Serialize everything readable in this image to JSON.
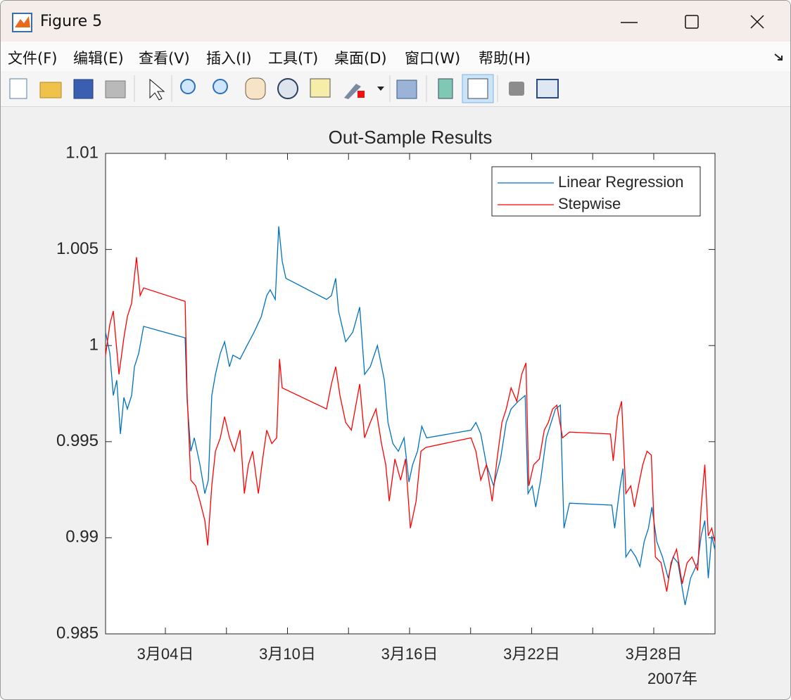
{
  "window": {
    "title": "Figure 5"
  },
  "menu": [
    "文件(F)",
    "编辑(E)",
    "查看(V)",
    "插入(I)",
    "工具(T)",
    "桌面(D)",
    "窗口(W)",
    "帮助(H)"
  ],
  "chart_data": {
    "type": "line",
    "title": "Out-Sample Results",
    "xlim": [
      1.06,
      31.01
    ],
    "xticks": [
      {
        "value": 4,
        "label": "3月04日"
      },
      {
        "value": 10,
        "label": "3月10日"
      },
      {
        "value": 16,
        "label": "3月16日"
      },
      {
        "value": 22,
        "label": "3月22日"
      },
      {
        "value": 28,
        "label": "3月28日"
      }
    ],
    "xminorticks": [
      7,
      13,
      19,
      25
    ],
    "x_secondary_label": "2007年",
    "ylim": [
      0.985,
      1.01
    ],
    "yticks": [
      0.985,
      0.99,
      0.995,
      1,
      1.005,
      1.01
    ],
    "legend": "upper right",
    "series": [
      {
        "name": "Linear Regression",
        "color": "#0072bd",
        "x": [
          1.06,
          1.27,
          1.44,
          1.61,
          1.79,
          1.96,
          2.13,
          2.34,
          2.48,
          2.69,
          2.93,
          4.97,
          5.07,
          5.25,
          5.42,
          5.7,
          5.94,
          6.11,
          6.28,
          6.46,
          6.7,
          6.91,
          7.15,
          7.32,
          7.67,
          8.01,
          8.36,
          8.71,
          8.98,
          9.15,
          9.4,
          9.57,
          9.74,
          9.92,
          11.92,
          12.16,
          12.37,
          12.51,
          12.86,
          13.21,
          13.55,
          13.79,
          14.07,
          14.42,
          14.76,
          14.94,
          15.18,
          15.45,
          15.73,
          15.97,
          16.15,
          16.39,
          16.6,
          16.84,
          19.02,
          19.26,
          19.5,
          19.78,
          20.13,
          20.47,
          20.75,
          20.99,
          21.34,
          21.68,
          21.82,
          22.03,
          22.2,
          22.44,
          22.72,
          22.96,
          23.17,
          23.41,
          23.59,
          23.86,
          25.94,
          26.08,
          26.35,
          26.49,
          26.63,
          26.87,
          27.12,
          27.32,
          27.53,
          27.74,
          27.91,
          28.15,
          28.43,
          28.71,
          28.95,
          29.19,
          29.54,
          29.81,
          30.16,
          30.33,
          30.51,
          30.68,
          30.85,
          31.0
        ],
        "values": [
          1.0007,
          0.9996,
          0.9974,
          0.9982,
          0.9954,
          0.9973,
          0.9967,
          0.9974,
          0.9989,
          0.9996,
          1.001,
          1.0004,
          0.9971,
          0.9945,
          0.9952,
          0.9938,
          0.9923,
          0.993,
          0.9974,
          0.9985,
          0.9996,
          1.0002,
          0.9989,
          0.9995,
          0.9993,
          1.0,
          1.0007,
          1.0015,
          1.0026,
          1.0029,
          1.0024,
          1.0062,
          1.0044,
          1.0035,
          1.0024,
          1.0026,
          1.0035,
          1.0018,
          1.0002,
          1.0007,
          1.002,
          0.9985,
          0.9989,
          1.0,
          0.9982,
          0.996,
          0.9949,
          0.9945,
          0.9952,
          0.9929,
          0.9938,
          0.9945,
          0.9958,
          0.9952,
          0.9956,
          0.996,
          0.9954,
          0.9938,
          0.9927,
          0.9941,
          0.996,
          0.9967,
          0.9971,
          0.9974,
          0.9923,
          0.9927,
          0.9916,
          0.993,
          0.9952,
          0.996,
          0.9967,
          0.9969,
          0.9905,
          0.9918,
          0.9917,
          0.9905,
          0.9927,
          0.9936,
          0.989,
          0.9894,
          0.989,
          0.9885,
          0.9898,
          0.9905,
          0.9916,
          0.9898,
          0.989,
          0.9879,
          0.989,
          0.9887,
          0.9865,
          0.9879,
          0.9887,
          0.9901,
          0.9909,
          0.9879,
          0.9901,
          0.9894
        ]
      },
      {
        "name": "Stepwise",
        "color": "#ff0000",
        "x": [
          1.06,
          1.27,
          1.44,
          1.72,
          1.96,
          2.13,
          2.34,
          2.58,
          2.76,
          2.93,
          4.97,
          5.07,
          5.25,
          5.49,
          5.7,
          5.94,
          6.08,
          6.28,
          6.46,
          6.7,
          6.91,
          7.15,
          7.39,
          7.67,
          7.88,
          8.08,
          8.29,
          8.57,
          8.78,
          8.98,
          9.23,
          9.47,
          9.61,
          9.74,
          11.92,
          12.16,
          12.37,
          12.58,
          12.86,
          13.14,
          13.55,
          13.79,
          14.07,
          14.35,
          14.62,
          14.83,
          15.0,
          15.28,
          15.56,
          15.8,
          16.04,
          16.32,
          16.56,
          16.8,
          19.02,
          19.26,
          19.5,
          19.78,
          20.06,
          20.3,
          20.54,
          20.75,
          20.99,
          21.27,
          21.51,
          21.72,
          21.86,
          22.1,
          22.38,
          22.62,
          22.82,
          23.03,
          23.24,
          23.52,
          23.86,
          25.87,
          26.01,
          26.22,
          26.42,
          26.63,
          26.87,
          27.05,
          27.25,
          27.46,
          27.67,
          27.88,
          28.08,
          28.36,
          28.64,
          28.85,
          29.12,
          29.4,
          29.64,
          29.88,
          30.16,
          30.33,
          30.51,
          30.68,
          30.85,
          31.0
        ],
        "values": [
          0.9995,
          1.0011,
          1.0018,
          0.9985,
          1.0004,
          1.0015,
          1.0022,
          1.0046,
          1.0026,
          1.003,
          1.0023,
          0.9974,
          0.993,
          0.9927,
          0.9919,
          0.9909,
          0.9896,
          0.9927,
          0.9945,
          0.9952,
          0.9963,
          0.9952,
          0.9945,
          0.9956,
          0.9923,
          0.9938,
          0.9945,
          0.9923,
          0.9941,
          0.9956,
          0.9949,
          0.9952,
          0.9993,
          0.9978,
          0.9967,
          0.998,
          0.9989,
          0.9974,
          0.996,
          0.9956,
          0.998,
          0.9952,
          0.996,
          0.9967,
          0.9949,
          0.9938,
          0.9919,
          0.9941,
          0.993,
          0.9941,
          0.9905,
          0.9919,
          0.9945,
          0.9947,
          0.9952,
          0.9945,
          0.993,
          0.9938,
          0.9919,
          0.9941,
          0.996,
          0.9967,
          0.9978,
          0.9971,
          0.9985,
          0.9991,
          0.9927,
          0.9938,
          0.9941,
          0.9956,
          0.996,
          0.9967,
          0.9969,
          0.9952,
          0.9955,
          0.9954,
          0.994,
          0.9963,
          0.9971,
          0.9923,
          0.9927,
          0.9916,
          0.9927,
          0.9938,
          0.9945,
          0.9943,
          0.989,
          0.9887,
          0.9872,
          0.9887,
          0.9894,
          0.9876,
          0.9887,
          0.989,
          0.9883,
          0.9916,
          0.9938,
          0.9901,
          0.9905,
          0.9898
        ]
      }
    ]
  }
}
